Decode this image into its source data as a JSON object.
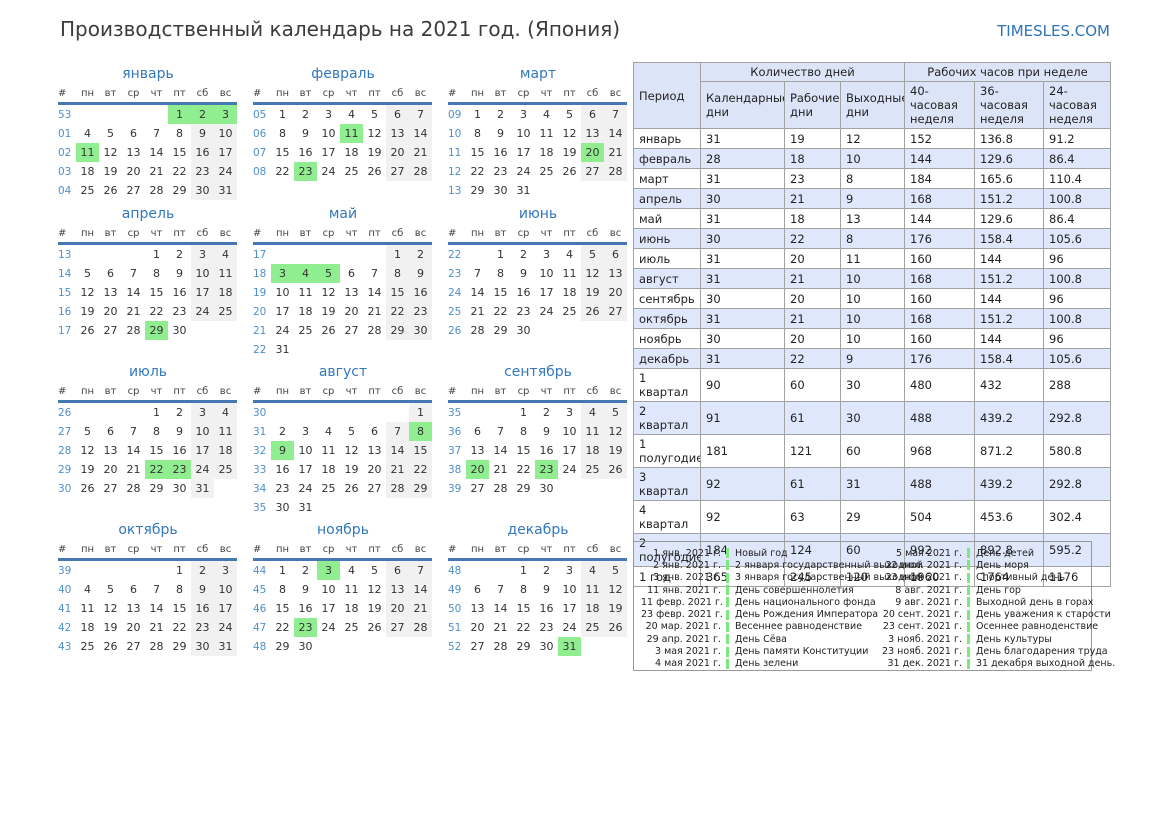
{
  "title": "Производственный календарь на 2021 год. (Япония)",
  "site": "TIMESLES.COM",
  "weekday_headers": [
    "#",
    "пн",
    "вт",
    "ср",
    "чт",
    "пт",
    "сб",
    "вс"
  ],
  "months": [
    {
      "name": "январь",
      "start": 4,
      "days": 31,
      "weeks": [
        "53",
        "01",
        "02",
        "03",
        "04"
      ],
      "holidays": [
        1,
        2,
        3,
        11
      ]
    },
    {
      "name": "февраль",
      "start": 0,
      "days": 28,
      "weeks": [
        "05",
        "06",
        "07",
        "08"
      ],
      "holidays": [
        11,
        23
      ]
    },
    {
      "name": "март",
      "start": 0,
      "days": 31,
      "weeks": [
        "09",
        "10",
        "11",
        "12",
        "13"
      ],
      "holidays": [
        20
      ]
    },
    {
      "name": "апрель",
      "start": 3,
      "days": 30,
      "weeks": [
        "13",
        "14",
        "15",
        "16",
        "17"
      ],
      "holidays": [
        29
      ]
    },
    {
      "name": "май",
      "start": 5,
      "days": 31,
      "weeks": [
        "17",
        "18",
        "19",
        "20",
        "21",
        "22"
      ],
      "holidays": [
        3,
        4,
        5
      ]
    },
    {
      "name": "июнь",
      "start": 1,
      "days": 30,
      "weeks": [
        "22",
        "23",
        "24",
        "25",
        "26"
      ],
      "holidays": []
    },
    {
      "name": "июль",
      "start": 3,
      "days": 31,
      "weeks": [
        "26",
        "27",
        "28",
        "29",
        "30"
      ],
      "holidays": [
        22,
        23
      ]
    },
    {
      "name": "август",
      "start": 6,
      "days": 31,
      "weeks": [
        "30",
        "31",
        "32",
        "33",
        "34",
        "35"
      ],
      "holidays": [
        8,
        9
      ]
    },
    {
      "name": "сентябрь",
      "start": 2,
      "days": 30,
      "weeks": [
        "35",
        "36",
        "37",
        "38",
        "39"
      ],
      "holidays": [
        20,
        23
      ]
    },
    {
      "name": "октябрь",
      "start": 4,
      "days": 31,
      "weeks": [
        "39",
        "40",
        "41",
        "42",
        "43"
      ],
      "holidays": []
    },
    {
      "name": "ноябрь",
      "start": 0,
      "days": 30,
      "weeks": [
        "44",
        "45",
        "46",
        "47",
        "48"
      ],
      "holidays": [
        3,
        23
      ]
    },
    {
      "name": "декабрь",
      "start": 2,
      "days": 31,
      "weeks": [
        "48",
        "49",
        "50",
        "51",
        "52"
      ],
      "holidays": [
        31
      ]
    }
  ],
  "table": {
    "col_period": "Период",
    "group1": "Количество дней",
    "group2": "Рабочих часов при неделе",
    "subheaders": [
      "Календарные дни",
      "Рабочие дни",
      "Выходные дни",
      "40-часовая неделя",
      "36-часовая неделя",
      "24-часовая неделя"
    ],
    "rows": [
      [
        "январь",
        "31",
        "19",
        "12",
        "152",
        "136.8",
        "91.2"
      ],
      [
        "февраль",
        "28",
        "18",
        "10",
        "144",
        "129.6",
        "86.4"
      ],
      [
        "март",
        "31",
        "23",
        "8",
        "184",
        "165.6",
        "110.4"
      ],
      [
        "апрель",
        "30",
        "21",
        "9",
        "168",
        "151.2",
        "100.8"
      ],
      [
        "май",
        "31",
        "18",
        "13",
        "144",
        "129.6",
        "86.4"
      ],
      [
        "июнь",
        "30",
        "22",
        "8",
        "176",
        "158.4",
        "105.6"
      ],
      [
        "июль",
        "31",
        "20",
        "11",
        "160",
        "144",
        "96"
      ],
      [
        "август",
        "31",
        "21",
        "10",
        "168",
        "151.2",
        "100.8"
      ],
      [
        "сентябрь",
        "30",
        "20",
        "10",
        "160",
        "144",
        "96"
      ],
      [
        "октябрь",
        "31",
        "21",
        "10",
        "168",
        "151.2",
        "100.8"
      ],
      [
        "ноябрь",
        "30",
        "20",
        "10",
        "160",
        "144",
        "96"
      ],
      [
        "декабрь",
        "31",
        "22",
        "9",
        "176",
        "158.4",
        "105.6"
      ],
      [
        "1 квартал",
        "90",
        "60",
        "30",
        "480",
        "432",
        "288"
      ],
      [
        "2 квартал",
        "91",
        "61",
        "30",
        "488",
        "439.2",
        "292.8"
      ],
      [
        "1 полугодие",
        "181",
        "121",
        "60",
        "968",
        "871.2",
        "580.8"
      ],
      [
        "3 квартал",
        "92",
        "61",
        "31",
        "488",
        "439.2",
        "292.8"
      ],
      [
        "4 квартал",
        "92",
        "63",
        "29",
        "504",
        "453.6",
        "302.4"
      ],
      [
        "2 полугодие",
        "184",
        "124",
        "60",
        "992",
        "892.8",
        "595.2"
      ],
      [
        "1 год",
        "365",
        "245",
        "120",
        "1960",
        "1764",
        "1176"
      ]
    ]
  },
  "legend": {
    "left": [
      {
        "date": "1 янв. 2021 г.",
        "label": "Новый год"
      },
      {
        "date": "2 янв. 2021 г.",
        "label": "2 января государственный выходной"
      },
      {
        "date": "3 янв. 2021 г.",
        "label": "3 января государственный выходной"
      },
      {
        "date": "11 янв. 2021 г.",
        "label": "День совершеннолетия"
      },
      {
        "date": "11 февр. 2021 г.",
        "label": "День национального фонда"
      },
      {
        "date": "23 февр. 2021 г.",
        "label": "День Рождения Императора"
      },
      {
        "date": "20 мар. 2021 г.",
        "label": "Весеннее равноденствие"
      },
      {
        "date": "29 апр. 2021 г.",
        "label": "День Сёва"
      },
      {
        "date": "3 мая 2021 г.",
        "label": "День памяти Конституции"
      },
      {
        "date": "4 мая 2021 г.",
        "label": "День зелени"
      }
    ],
    "right": [
      {
        "date": "5 мая 2021 г.",
        "label": "День детей"
      },
      {
        "date": "22 июл. 2021 г.",
        "label": "День моря"
      },
      {
        "date": "23 июл. 2021 г.",
        "label": "Спортивный день"
      },
      {
        "date": "8 авг. 2021 г.",
        "label": "День гор"
      },
      {
        "date": "9 авг. 2021 г.",
        "label": "Выходной день в горах"
      },
      {
        "date": "20 сент. 2021 г.",
        "label": "День уважения к старости"
      },
      {
        "date": "23 сент. 2021 г.",
        "label": "Осеннее равноденствие"
      },
      {
        "date": "3 нояб. 2021 г.",
        "label": "День культуры"
      },
      {
        "date": "23 нояб. 2021 г.",
        "label": "День благодарения труда"
      },
      {
        "date": "31 дек. 2021 г.",
        "label": "31 декабря выходной день."
      }
    ]
  },
  "colors": {
    "accent_blue": "#3378be",
    "week_number_blue": "#4f8fca",
    "header_rule_blue": "#4677b2",
    "holiday_green": "#90ee90",
    "weekend_gray": "#f1f1f1",
    "table_header_bg": "#dce4f8",
    "table_stripe_bg": "#dfe7fc",
    "site_link_blue": "#2d74b8"
  }
}
